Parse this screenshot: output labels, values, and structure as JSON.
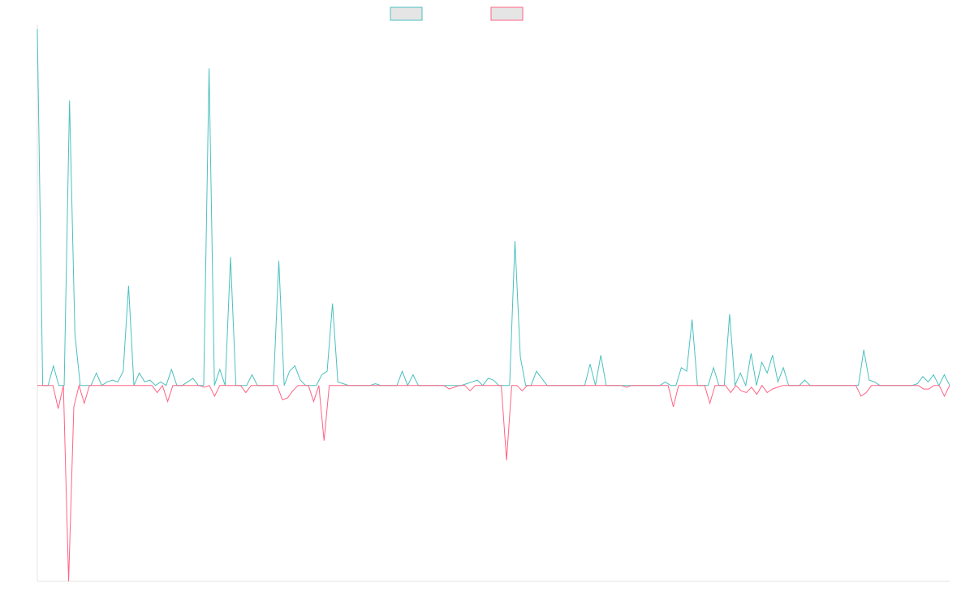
{
  "chart_data": {
    "type": "line",
    "title": "",
    "xlabel": "",
    "ylabel": "",
    "legend": {
      "placement": "top-center",
      "style": "swatch-only"
    },
    "grid": false,
    "ylim": [
      -1.1,
      2.0
    ],
    "series": [
      {
        "color": "#4bc0c0",
        "fill": "#e5e5e5",
        "values": [
          2.0,
          0,
          0,
          0.11,
          0,
          0,
          1.6,
          0.29,
          0,
          0,
          0,
          0.07,
          0,
          0.02,
          0.03,
          0.02,
          0.08,
          0.56,
          0,
          0.07,
          0.02,
          0.03,
          0,
          0.02,
          0,
          0.09,
          0,
          0,
          0.02,
          0.04,
          0,
          0,
          1.78,
          0,
          0.09,
          0,
          0.72,
          0,
          0,
          0,
          0.06,
          0,
          0,
          0,
          0,
          0.7,
          0,
          0.08,
          0.11,
          0.03,
          0,
          0,
          0,
          0.06,
          0.08,
          0.46,
          0.02,
          0.01,
          0,
          0,
          0,
          0,
          0,
          0.01,
          0,
          0,
          0,
          0,
          0.08,
          0,
          0.06,
          0,
          0,
          0,
          0,
          0,
          0,
          0,
          0,
          0,
          0.01,
          0.02,
          0.03,
          0,
          0.04,
          0.03,
          0,
          0,
          0,
          0.81,
          0.16,
          0,
          0,
          0.08,
          0.04,
          0,
          0,
          0,
          0,
          0,
          0,
          0,
          0,
          0.12,
          0,
          0.17,
          0,
          0,
          0,
          0,
          0,
          0,
          0,
          0,
          0,
          0,
          0,
          0.02,
          0,
          0,
          0.1,
          0.08,
          0.37,
          0,
          0,
          0,
          0.1,
          0,
          0,
          0.4,
          0,
          0.07,
          0,
          0.18,
          0,
          0.13,
          0.07,
          0.17,
          0.02,
          0.1,
          0,
          0,
          0,
          0.03,
          0,
          0,
          0,
          0,
          0,
          0,
          0,
          0,
          0,
          0,
          0.2,
          0.03,
          0.02,
          0,
          0,
          0,
          0,
          0,
          0,
          0,
          0.01,
          0.05,
          0.02,
          0.06,
          0,
          0.06,
          0
        ]
      },
      {
        "color": "#ff6384",
        "fill": "#e5e5e5",
        "values": [
          0,
          0,
          0,
          0,
          -0.13,
          0,
          -1.1,
          -0.12,
          0,
          -0.1,
          0,
          0,
          0,
          0,
          0,
          0,
          0,
          0,
          0,
          0,
          0,
          0,
          0,
          -0.04,
          0,
          -0.09,
          0,
          0,
          0,
          0,
          0,
          0,
          -0.01,
          0,
          -0.06,
          0,
          0,
          0,
          0,
          0,
          -0.04,
          0,
          0,
          0,
          0,
          0,
          0,
          -0.08,
          -0.07,
          -0.03,
          0,
          0,
          0,
          -0.09,
          0,
          -0.31,
          0,
          0,
          0,
          0,
          0,
          0,
          0,
          0,
          0,
          0,
          0,
          0,
          0,
          0,
          0,
          0,
          0,
          0,
          0,
          0,
          0,
          0,
          0,
          -0.02,
          -0.01,
          0,
          0,
          -0.03,
          0,
          0,
          0,
          0,
          0,
          0,
          -0.42,
          0,
          0,
          -0.03,
          0,
          0,
          0,
          0,
          0,
          0,
          0,
          0,
          0,
          0,
          0,
          0,
          0,
          0,
          0,
          0,
          0,
          0,
          0,
          -0.01,
          0,
          0,
          0,
          0,
          0,
          0,
          0,
          0,
          -0.12,
          0,
          0,
          0,
          0,
          0,
          0,
          -0.1,
          0,
          0,
          0,
          -0.04,
          0,
          -0.03,
          -0.04,
          -0.01,
          -0.05,
          0,
          -0.04,
          -0.02,
          -0.01,
          0,
          0,
          0,
          0,
          0,
          0,
          0,
          0,
          0,
          0,
          0,
          0,
          0,
          0,
          0,
          -0.06,
          -0.04,
          0,
          0,
          0,
          0,
          0,
          0,
          0,
          0,
          0,
          0,
          -0.02,
          -0.02,
          0,
          0,
          -0.06,
          0
        ]
      }
    ]
  }
}
